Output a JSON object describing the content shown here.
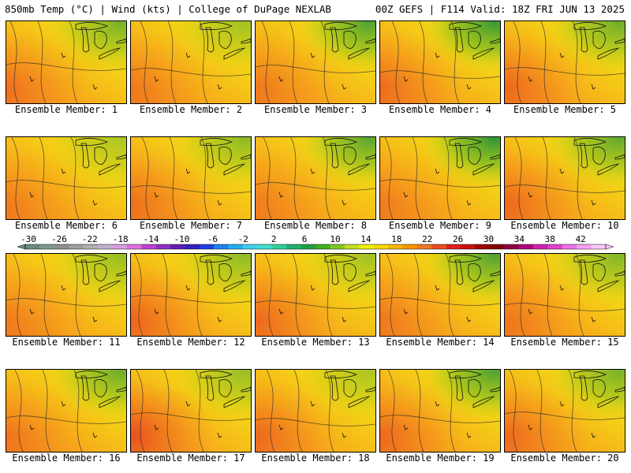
{
  "header": {
    "left": "850mb Temp (°C) | Wind (kts) | College of DuPage NEXLAB",
    "right": "00Z GEFS | F114 Valid: 18Z FRI JUN 13 2025"
  },
  "colorbar": {
    "ticks": [
      "-30",
      "-26",
      "-22",
      "-18",
      "-14",
      "-10",
      "-6",
      "-2",
      "2",
      "6",
      "10",
      "14",
      "18",
      "22",
      "26",
      "30",
      "34",
      "38",
      "42"
    ],
    "colors": [
      "#6a8a7a",
      "#7f9a8c",
      "#8e8e8e",
      "#a0a0a0",
      "#b0b0b0",
      "#c0b4cc",
      "#d89ce0",
      "#e070e0",
      "#c040d0",
      "#9030c0",
      "#6020b0",
      "#3020c0",
      "#2040e0",
      "#2080f0",
      "#20b0f0",
      "#40d0f0",
      "#40e0d0",
      "#30d0a0",
      "#20b070",
      "#20a040",
      "#40b020",
      "#80c820",
      "#c0e020",
      "#f0f000",
      "#f8d800",
      "#f8b800",
      "#f89800",
      "#f07820",
      "#e85020",
      "#e02020",
      "#c81010",
      "#a00000",
      "#800000",
      "#900040",
      "#b00080",
      "#d020b0",
      "#e040d0",
      "#f070e8",
      "#f8a0f0",
      "#ffc8f8"
    ]
  },
  "panels": [
    {
      "label": "Ensemble Member: 1",
      "warm": 0.45,
      "green": 0.55
    },
    {
      "label": "Ensemble Member: 2",
      "warm": 0.35,
      "green": 0.35
    },
    {
      "label": "Ensemble Member: 3",
      "warm": 0.35,
      "green": 0.75
    },
    {
      "label": "Ensemble Member: 4",
      "warm": 0.5,
      "green": 0.85
    },
    {
      "label": "Ensemble Member: 5",
      "warm": 0.55,
      "green": 0.6
    },
    {
      "label": "Ensemble Member: 6",
      "warm": 0.3,
      "green": 0.3
    },
    {
      "label": "Ensemble Member: 7",
      "warm": 0.45,
      "green": 0.45
    },
    {
      "label": "Ensemble Member: 8",
      "warm": 0.3,
      "green": 0.7
    },
    {
      "label": "Ensemble Member: 9",
      "warm": 0.3,
      "green": 0.9
    },
    {
      "label": "Ensemble Member: 10",
      "warm": 0.55,
      "green": 0.65
    },
    {
      "label": "Ensemble Member: 11",
      "warm": 0.3,
      "green": 0.4
    },
    {
      "label": "Ensemble Member: 12",
      "warm": 0.6,
      "green": 0.45
    },
    {
      "label": "Ensemble Member: 13",
      "warm": 0.55,
      "green": 0.35
    },
    {
      "label": "Ensemble Member: 14",
      "warm": 0.35,
      "green": 0.75
    },
    {
      "label": "Ensemble Member: 15",
      "warm": 0.4,
      "green": 0.5
    },
    {
      "label": "Ensemble Member: 16",
      "warm": 0.4,
      "green": 0.6
    },
    {
      "label": "Ensemble Member: 17",
      "warm": 0.85,
      "green": 0.4
    },
    {
      "label": "Ensemble Member: 18",
      "warm": 0.55,
      "green": 0.3
    },
    {
      "label": "Ensemble Member: 19",
      "warm": 0.55,
      "green": 0.75
    },
    {
      "label": "Ensemble Member: 20",
      "warm": 0.55,
      "green": 0.55
    }
  ]
}
